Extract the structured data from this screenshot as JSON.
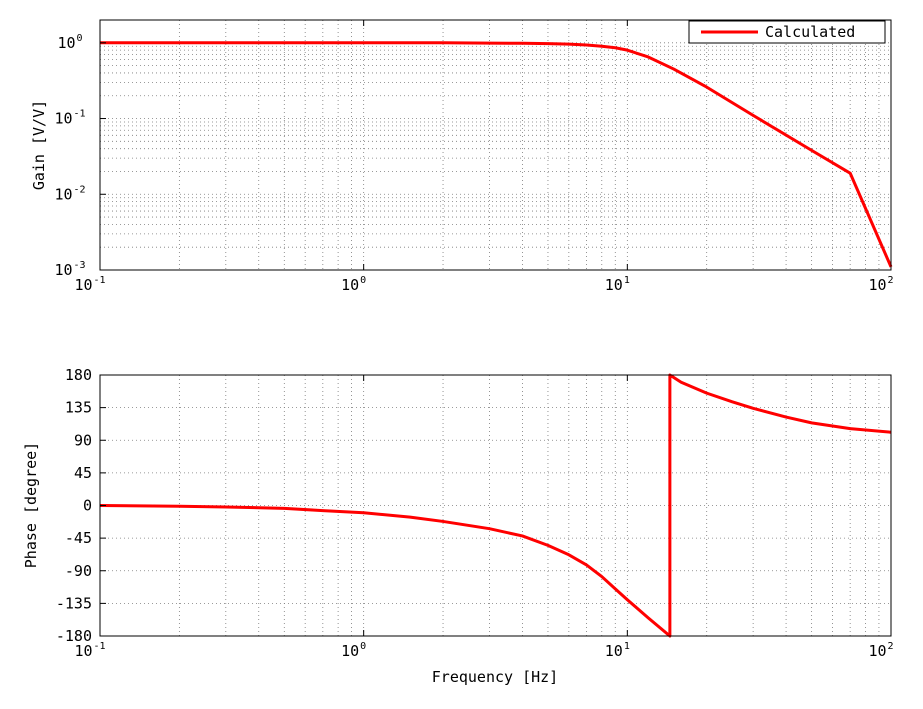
{
  "chart_data": [
    {
      "type": "line",
      "panel": "gain",
      "x_scale": "log",
      "y_scale": "log",
      "xlim": [
        0.1,
        100
      ],
      "ylim": [
        0.001,
        2
      ],
      "ylabel": "Gain [V/V]",
      "xlabel": "",
      "grid": true,
      "x_ticks": [
        {
          "base": "10",
          "exp": "-1",
          "value": 0.1
        },
        {
          "base": "10",
          "exp": "0",
          "value": 1
        },
        {
          "base": "10",
          "exp": "1",
          "value": 10
        },
        {
          "base": "10",
          "exp": "2",
          "value": 100
        }
      ],
      "y_ticks": [
        {
          "base": "10",
          "exp": "-3",
          "value": 0.001
        },
        {
          "base": "10",
          "exp": "-2",
          "value": 0.01
        },
        {
          "base": "10",
          "exp": "-1",
          "value": 0.1
        },
        {
          "base": "10",
          "exp": "0",
          "value": 1
        }
      ],
      "legend": {
        "placement": "top-right"
      },
      "series": [
        {
          "name": "Calculated",
          "color": "#ff0000",
          "x": [
            0.1,
            0.2,
            0.5,
            1,
            2,
            3,
            4,
            5,
            6,
            7,
            8,
            9,
            10,
            12,
            15,
            20,
            30,
            50,
            70,
            100
          ],
          "y": [
            1.0,
            1.0,
            1.0,
            1.0,
            1.0,
            0.99,
            0.985,
            0.975,
            0.96,
            0.935,
            0.9,
            0.86,
            0.8,
            0.65,
            0.45,
            0.26,
            0.11,
            0.038,
            0.019,
            0.0011
          ]
        }
      ]
    },
    {
      "type": "line",
      "panel": "phase",
      "x_scale": "log",
      "y_scale": "linear",
      "xlim": [
        0.1,
        100
      ],
      "ylim": [
        -180,
        180
      ],
      "ylabel": "Phase [degree]",
      "xlabel": "Frequency [Hz]",
      "grid": true,
      "x_ticks": [
        {
          "base": "10",
          "exp": "-1",
          "value": 0.1
        },
        {
          "base": "10",
          "exp": "0",
          "value": 1
        },
        {
          "base": "10",
          "exp": "1",
          "value": 10
        },
        {
          "base": "10",
          "exp": "2",
          "value": 100
        }
      ],
      "y_ticks": [
        "-180",
        "-135",
        "-90",
        "-45",
        "0",
        "45",
        "90",
        "135",
        "180"
      ],
      "series": [
        {
          "name": "Calculated",
          "color": "#ff0000",
          "x": [
            0.1,
            0.2,
            0.3,
            0.5,
            0.7,
            1,
            1.5,
            2,
            3,
            4,
            5,
            6,
            7,
            8,
            9,
            10,
            12,
            14.5,
            14.5,
            16,
            20,
            25,
            30,
            40,
            50,
            70,
            100
          ],
          "y": [
            0,
            -1,
            -2,
            -4,
            -7,
            -10,
            -16,
            -22,
            -32,
            -42,
            -55,
            -68,
            -82,
            -98,
            -115,
            -130,
            -155,
            -180,
            180,
            170,
            155,
            143,
            134,
            122,
            114,
            106,
            101
          ]
        }
      ]
    }
  ]
}
